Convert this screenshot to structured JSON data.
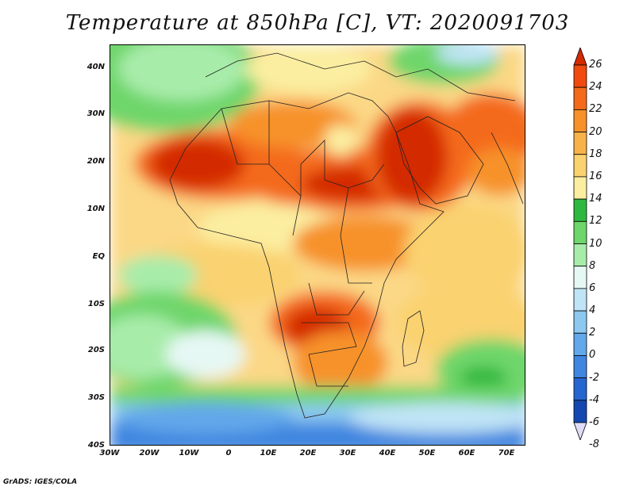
{
  "title": "Temperature at 850hPa [C], VT: 2020091703",
  "credit": "GrADS: IGES/COLA",
  "lat_labels": [
    "40N",
    "30N",
    "20N",
    "10N",
    "EQ",
    "10S",
    "20S",
    "30S",
    "40S"
  ],
  "lon_labels": [
    "30W",
    "20W",
    "10W",
    "0",
    "10E",
    "20E",
    "30E",
    "40E",
    "50E",
    "60E",
    "70E"
  ],
  "colorbar": {
    "labels": [
      "26",
      "24",
      "22",
      "20",
      "18",
      "16",
      "14",
      "12",
      "10",
      "8",
      "6",
      "4",
      "2",
      "0",
      "-2",
      "-4",
      "-6",
      "-8"
    ],
    "colors": [
      "#d42a00",
      "#f04a10",
      "#f46a1a",
      "#f7922a",
      "#f9b24a",
      "#fad270",
      "#fbeea0",
      "#2fb840",
      "#6ed66a",
      "#a8ecaa",
      "#e6f8f4",
      "#bfe4f6",
      "#8cc8f0",
      "#62a8ea",
      "#3f86e0",
      "#2666d0",
      "#1448b0",
      "#0c2a80"
    ]
  }
}
